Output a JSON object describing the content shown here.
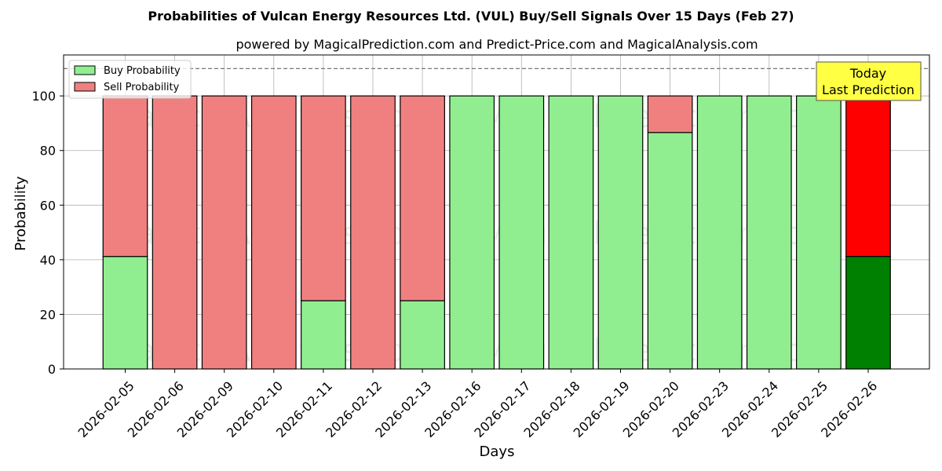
{
  "chart_data": {
    "type": "bar",
    "stacked": true,
    "title": "Probabilities of Vulcan Energy Resources Ltd. (VUL) Buy/Sell Signals Over 15 Days (Feb 27)",
    "subtitle": "powered by MagicalPrediction.com and Predict-Price.com and MagicalAnalysis.com",
    "xlabel": "Days",
    "ylabel": "Probability",
    "ylim": [
      0,
      115
    ],
    "yticks": [
      0,
      20,
      40,
      60,
      80,
      100
    ],
    "reference_line": 110,
    "grid": true,
    "legend_position": "top-left",
    "categories": [
      "2026-02-05",
      "2026-02-06",
      "2026-02-09",
      "2026-02-10",
      "2026-02-11",
      "2026-02-12",
      "2026-02-13",
      "2026-02-16",
      "2026-02-17",
      "2026-02-18",
      "2026-02-19",
      "2026-02-20",
      "2026-02-23",
      "2026-02-24",
      "2026-02-25",
      "2026-02-26"
    ],
    "series": [
      {
        "name": "Buy Probability",
        "color": "#90ee90",
        "values": [
          41.2,
          0,
          0,
          0,
          25,
          0,
          25,
          100,
          100,
          100,
          100,
          86.6,
          100,
          100,
          100,
          41.2
        ]
      },
      {
        "name": "Sell Probability",
        "color": "#f08080",
        "values": [
          58.8,
          100,
          100,
          100,
          75,
          100,
          75,
          0,
          0,
          0,
          0,
          13.4,
          0,
          0,
          0,
          58.8
        ]
      }
    ],
    "highlight": {
      "index": 15,
      "buy_color": "#008000",
      "sell_color": "#ff0000"
    },
    "annotation": {
      "text_line1": "Today",
      "text_line2": "Last Prediction",
      "color": "#ffff44"
    },
    "watermarks": [
      "MagicalAnalysis.com",
      "MagicalPrediction.com"
    ]
  }
}
